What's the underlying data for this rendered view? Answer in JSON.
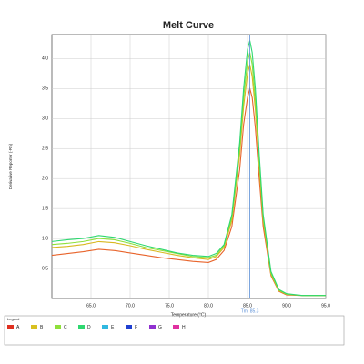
{
  "chart_data": {
    "type": "line",
    "title": "Melt Curve",
    "x_label": "Temperature (°C)",
    "y_label": "Derivative Reporter (-Rn)",
    "xlim": [
      60,
      95
    ],
    "ylim": [
      0,
      4.4
    ],
    "xticks": [
      {
        "value": 65,
        "label": "65.0"
      },
      {
        "value": 70,
        "label": "70.0"
      },
      {
        "value": 75,
        "label": "75.0"
      },
      {
        "value": 80,
        "label": "80.0"
      },
      {
        "value": 85,
        "label": "85.0"
      },
      {
        "value": 90,
        "label": "90.0"
      },
      {
        "value": 95,
        "label": "95.0"
      }
    ],
    "yticks": [
      0.5,
      {
        "value": 1,
        "label": "1.0"
      },
      1.5,
      {
        "value": 2,
        "label": "2.0"
      },
      2.5,
      {
        "value": 3,
        "label": "3.0"
      },
      3.5,
      {
        "value": 4,
        "label": "4.0"
      }
    ],
    "grid": true,
    "x": [
      60,
      62,
      64,
      66,
      68,
      70,
      72,
      74,
      76,
      78,
      80,
      81,
      82,
      83,
      84,
      84.5,
      85,
      85.3,
      85.6,
      86,
      86.5,
      87,
      88,
      89,
      90,
      92,
      95
    ],
    "series": [
      {
        "color": "#e8632a",
        "values": [
          0.72,
          0.75,
          0.78,
          0.82,
          0.8,
          0.76,
          0.72,
          0.68,
          0.65,
          0.62,
          0.6,
          0.65,
          0.8,
          1.2,
          2.15,
          2.9,
          3.35,
          3.5,
          3.35,
          2.85,
          2.0,
          1.2,
          0.38,
          0.12,
          0.06,
          0.05,
          0.05
        ]
      },
      {
        "color": "#d8b820",
        "values": [
          0.85,
          0.87,
          0.9,
          0.95,
          0.93,
          0.88,
          0.82,
          0.77,
          0.72,
          0.68,
          0.65,
          0.7,
          0.85,
          1.3,
          2.4,
          3.2,
          3.75,
          3.9,
          3.7,
          3.15,
          2.2,
          1.3,
          0.4,
          0.13,
          0.07,
          0.05,
          0.05
        ]
      },
      {
        "color": "#8ee03a",
        "values": [
          0.9,
          0.92,
          0.95,
          1.0,
          0.98,
          0.92,
          0.85,
          0.8,
          0.75,
          0.7,
          0.68,
          0.72,
          0.88,
          1.35,
          2.5,
          3.35,
          3.95,
          4.1,
          3.9,
          3.3,
          2.3,
          1.35,
          0.42,
          0.14,
          0.07,
          0.05,
          0.05
        ]
      },
      {
        "color": "#2ed870",
        "values": [
          0.95,
          0.98,
          1.0,
          1.05,
          1.02,
          0.95,
          0.88,
          0.82,
          0.76,
          0.72,
          0.7,
          0.75,
          0.9,
          1.4,
          2.6,
          3.5,
          4.15,
          4.3,
          4.1,
          3.5,
          2.4,
          1.4,
          0.45,
          0.15,
          0.08,
          0.05,
          0.05
        ]
      }
    ],
    "annotation": {
      "text": "Tm: 85.3",
      "x": 85.3,
      "color": "#5b8fd6"
    },
    "legend": {
      "title": "Legend",
      "entries": [
        {
          "name": "A",
          "color": "#e03020"
        },
        {
          "name": "B",
          "color": "#d8c020"
        },
        {
          "name": "C",
          "color": "#8ee03a"
        },
        {
          "name": "D",
          "color": "#2ed870"
        },
        {
          "name": "E",
          "color": "#30b8e0"
        },
        {
          "name": "F",
          "color": "#2040d0"
        },
        {
          "name": "G",
          "color": "#9030d0"
        },
        {
          "name": "H",
          "color": "#e030a0"
        }
      ]
    }
  }
}
